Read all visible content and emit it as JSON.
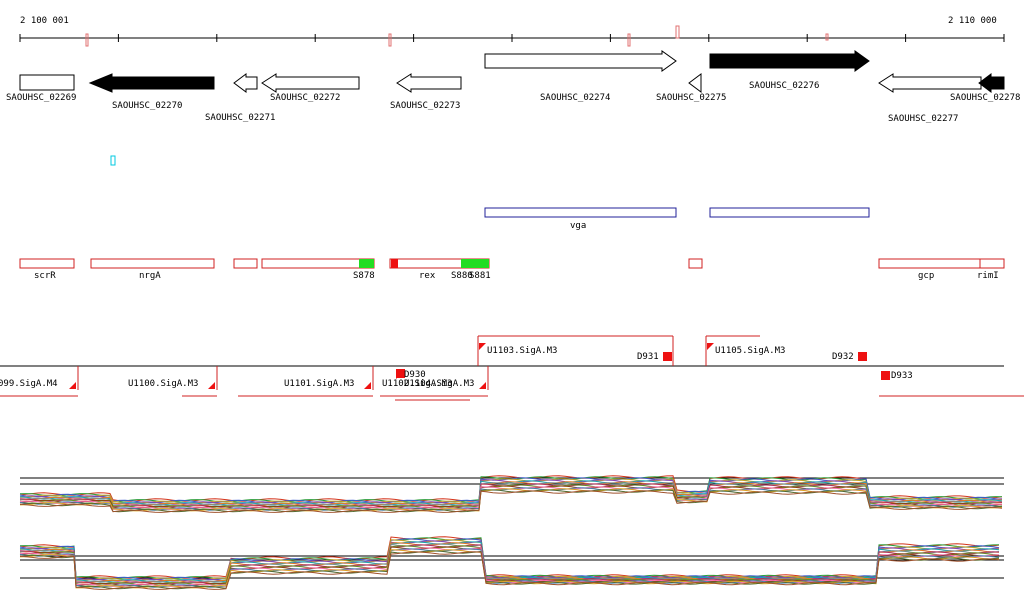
{
  "ruler": {
    "start_label": "2 100 001",
    "end_label": "2 110 000"
  },
  "genes": [
    {
      "id": "SAOUHSC_02269",
      "strand": "+",
      "filled": false
    },
    {
      "id": "SAOUHSC_02270",
      "strand": "-",
      "filled": true
    },
    {
      "id": "SAOUHSC_02271",
      "strand": "-",
      "filled": false
    },
    {
      "id": "SAOUHSC_02272",
      "strand": "-",
      "filled": false
    },
    {
      "id": "SAOUHSC_02273",
      "strand": "-",
      "filled": false
    },
    {
      "id": "SAOUHSC_02274",
      "strand": "+",
      "filled": false
    },
    {
      "id": "SAOUHSC_02275",
      "strand": "-",
      "filled": false
    },
    {
      "id": "SAOUHSC_02276",
      "strand": "+",
      "filled": true
    },
    {
      "id": "SAOUHSC_02277",
      "strand": "-",
      "filled": false
    },
    {
      "id": "SAOUHSC_02278",
      "strand": "-",
      "filled": true
    }
  ],
  "annotation_blue": [
    {
      "label": "vga"
    },
    {
      "label": ""
    }
  ],
  "features": [
    {
      "label": "scrR"
    },
    {
      "label": "nrgA"
    },
    {
      "label": ""
    },
    {
      "label": ""
    },
    {
      "label": "S878"
    },
    {
      "label": "rex"
    },
    {
      "label": "S880"
    },
    {
      "label": "S881"
    },
    {
      "label": ""
    },
    {
      "label": "gcp"
    },
    {
      "label": "rimI"
    }
  ],
  "transcripts": [
    {
      "label": "099.SigA.M4"
    },
    {
      "label": "U1100.SigA.M3"
    },
    {
      "label": "U1101.SigA.M3"
    },
    {
      "label": "U1102.SigA.M3"
    },
    {
      "label": "U1104.SigA.M3"
    },
    {
      "label": "U1103.SigA.M3"
    },
    {
      "label": "D930"
    },
    {
      "label": "D931"
    },
    {
      "label": "U1105.SigA.M3"
    },
    {
      "label": "D932"
    },
    {
      "label": "D933"
    }
  ]
}
